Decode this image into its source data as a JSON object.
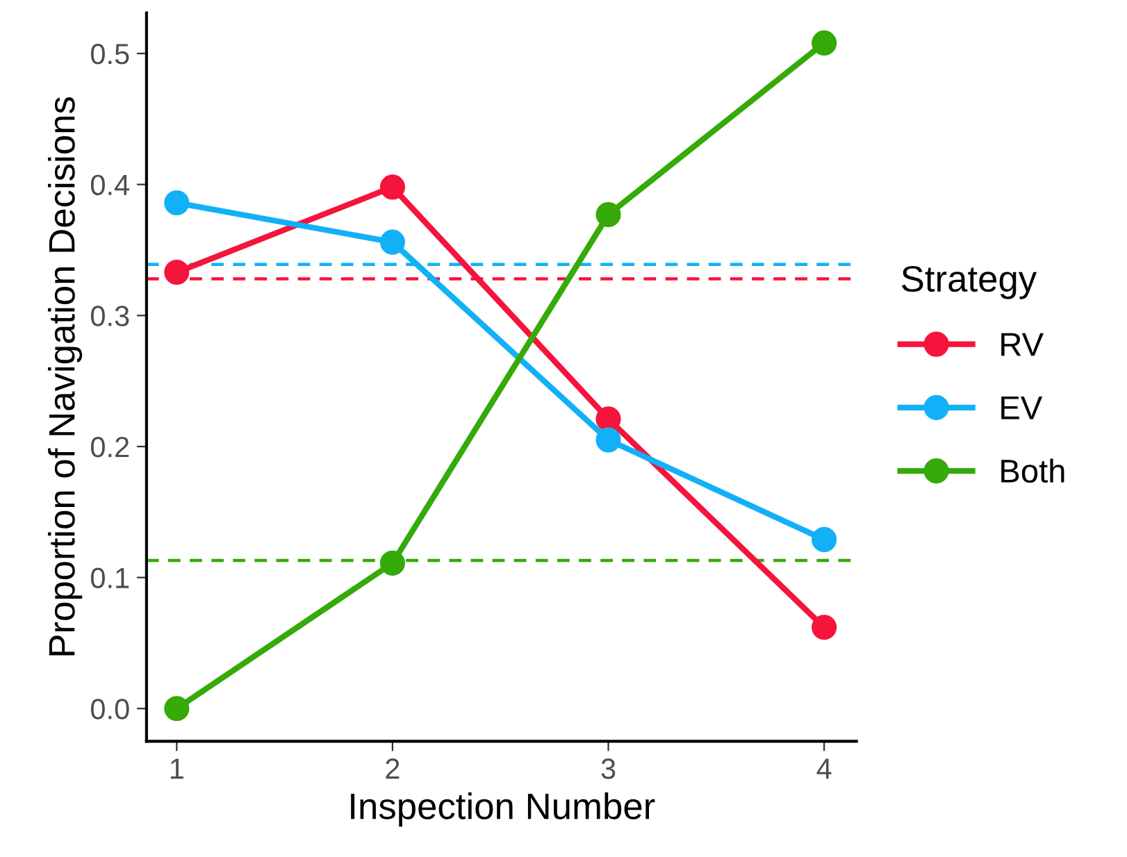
{
  "chart_data": {
    "type": "line",
    "xlabel": "Inspection Number",
    "ylabel": "Proportion of Navigation Decisions",
    "legend_title": "Strategy",
    "x": [
      1,
      2,
      3,
      4
    ],
    "xlim": [
      0.86,
      4.15
    ],
    "xticks": [
      1,
      2,
      3,
      4
    ],
    "ylim": [
      -0.025,
      0.531
    ],
    "yticks": [
      {
        "value": 0,
        "label": "0.0"
      },
      0.1,
      0.2,
      0.3,
      0.4,
      0.5
    ],
    "marker": "circle",
    "line_style": "solid",
    "grid": false,
    "legend": "right",
    "series": [
      {
        "name": "RV",
        "color": "#f5143c",
        "values": [
          0.333,
          0.398,
          0.221,
          0.062
        ]
      },
      {
        "name": "EV",
        "color": "#12b1f7",
        "values": [
          0.386,
          0.356,
          0.205,
          0.129
        ]
      },
      {
        "name": "Both",
        "color": "#35aa08",
        "values": [
          0.0,
          0.111,
          0.377,
          0.508
        ]
      }
    ],
    "ref_lines": [
      {
        "axis": "y",
        "value": 0.328,
        "color": "#f5143c",
        "line_style": "dashed"
      },
      {
        "axis": "y",
        "value": 0.339,
        "color": "#12b1f7",
        "line_style": "dashed"
      },
      {
        "axis": "y",
        "value": 0.113,
        "color": "#35aa08",
        "line_style": "dashed"
      }
    ]
  }
}
